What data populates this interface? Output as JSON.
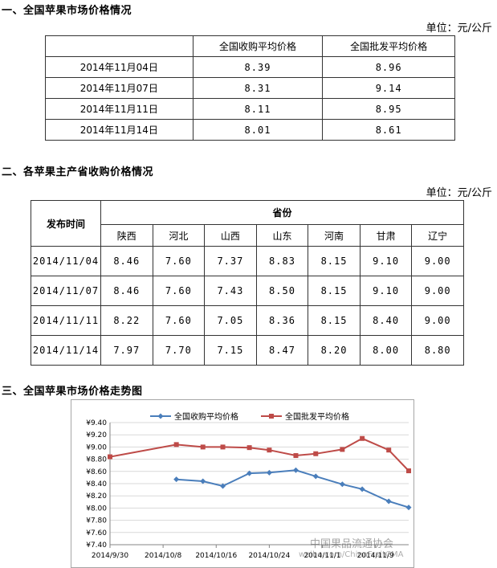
{
  "section1": {
    "heading": "一、全国苹果市场价格情况",
    "unit": "单位：元/公斤",
    "headers": [
      "",
      "全国收购平均价格",
      "全国批发平均价格"
    ],
    "rows": [
      {
        "date": "2014年11月04日",
        "purchase": "8.39",
        "wholesale": "8.96"
      },
      {
        "date": "2014年11月07日",
        "purchase": "8.31",
        "wholesale": "9.14"
      },
      {
        "date": "2014年11月11日",
        "purchase": "8.11",
        "wholesale": "8.95"
      },
      {
        "date": "2014年11月14日",
        "purchase": "8.01",
        "wholesale": "8.61"
      }
    ]
  },
  "section2": {
    "heading": "二、各苹果主产省收购价格情况",
    "unit": "单位：元/公斤",
    "time_header": "发布时间",
    "province_header": "省份",
    "provinces": [
      "陕西",
      "河北",
      "山西",
      "山东",
      "河南",
      "甘肃",
      "辽宁"
    ],
    "rows": [
      {
        "date": "2014/11/04",
        "values": [
          "8.46",
          "7.60",
          "7.37",
          "8.83",
          "8.15",
          "9.10",
          "9.00"
        ]
      },
      {
        "date": "2014/11/07",
        "values": [
          "8.46",
          "7.60",
          "7.43",
          "8.50",
          "8.15",
          "9.10",
          "9.00"
        ]
      },
      {
        "date": "2014/11/11",
        "values": [
          "8.22",
          "7.60",
          "7.05",
          "8.36",
          "8.15",
          "8.40",
          "9.00"
        ]
      },
      {
        "date": "2014/11/14",
        "values": [
          "7.97",
          "7.70",
          "7.15",
          "8.47",
          "8.20",
          "8.00",
          "8.80"
        ]
      }
    ]
  },
  "section3": {
    "heading": "三、全国苹果市场价格走势图"
  },
  "chart_data": {
    "type": "line",
    "ylim": [
      7.4,
      9.4
    ],
    "ystep": 0.2,
    "y_tick_prefix": "¥",
    "xlim": [
      "2014-09-30",
      "2014-11-14"
    ],
    "x_ticks": [
      "2014/9/30",
      "2014/10/8",
      "2014/10/16",
      "2014/10/24",
      "2014/11/1",
      "2014/11/9"
    ],
    "legend_position": "top",
    "series": [
      {
        "name": "全国收购平均价格",
        "color": "#4a7ebb",
        "marker": "diamond",
        "points": [
          [
            "2014-10-10",
            8.47
          ],
          [
            "2014-10-14",
            8.44
          ],
          [
            "2014-10-17",
            8.36
          ],
          [
            "2014-10-21",
            8.57
          ],
          [
            "2014-10-24",
            8.58
          ],
          [
            "2014-10-28",
            8.62
          ],
          [
            "2014-10-31",
            8.52
          ],
          [
            "2014-11-04",
            8.39
          ],
          [
            "2014-11-07",
            8.31
          ],
          [
            "2014-11-11",
            8.11
          ],
          [
            "2014-11-14",
            8.01
          ]
        ]
      },
      {
        "name": "全国批发平均价格",
        "color": "#be4b48",
        "marker": "square",
        "points": [
          [
            "2014-09-30",
            8.84
          ],
          [
            "2014-10-10",
            9.04
          ],
          [
            "2014-10-14",
            9.0
          ],
          [
            "2014-10-17",
            9.0
          ],
          [
            "2014-10-21",
            8.99
          ],
          [
            "2014-10-24",
            8.95
          ],
          [
            "2014-10-28",
            8.86
          ],
          [
            "2014-10-31",
            8.89
          ],
          [
            "2014-11-04",
            8.96
          ],
          [
            "2014-11-07",
            9.14
          ],
          [
            "2014-11-11",
            8.95
          ],
          [
            "2014-11-14",
            8.61
          ]
        ]
      }
    ]
  },
  "watermark": {
    "text": "中国果品流通协会",
    "sub": "weibo.com/ChinaFruitCMA"
  }
}
